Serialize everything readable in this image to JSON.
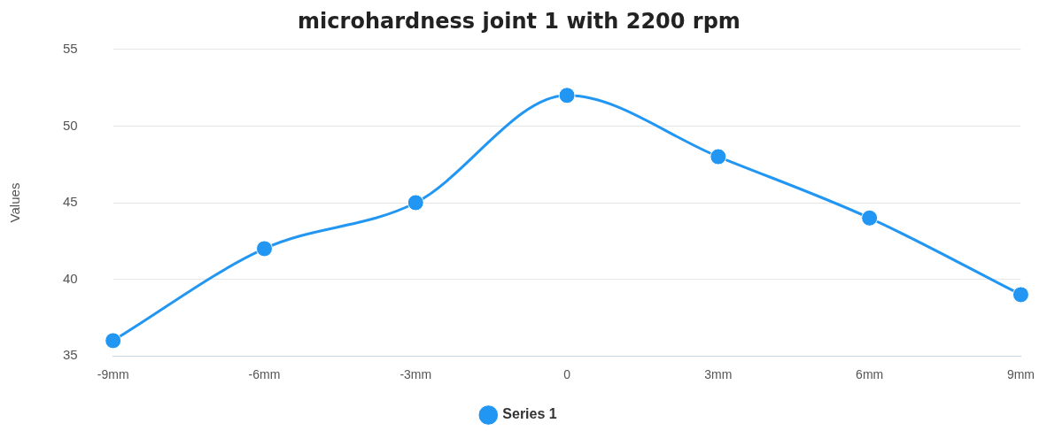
{
  "chart_data": {
    "type": "line",
    "title": "microhardness joint 1 with 2200 rpm",
    "ylabel": "Values",
    "categories": [
      "-9mm",
      "-6mm",
      "-3mm",
      "0",
      "3mm",
      "6mm",
      "9mm"
    ],
    "series": [
      {
        "name": "Series 1",
        "color": "#2196f3",
        "values": [
          36,
          42,
          45,
          52,
          48,
          44,
          39
        ]
      }
    ],
    "ylim": [
      35,
      55
    ],
    "yticks": [
      35,
      40,
      45,
      50,
      55
    ],
    "grid": "y",
    "legend": "bottom",
    "marker": "circle",
    "line_style": "solid"
  }
}
